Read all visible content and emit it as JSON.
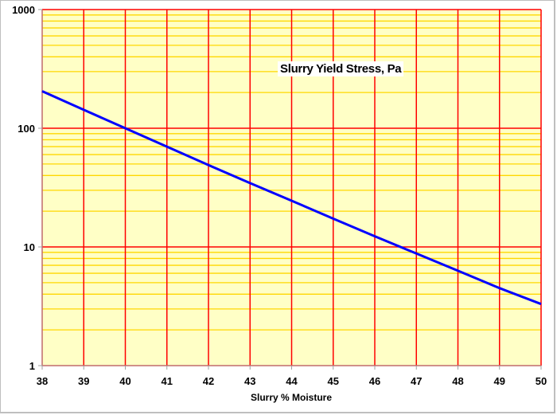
{
  "chart_data": {
    "type": "line",
    "title": "Slurry  Yield Stress, Pa",
    "xlabel": "Slurry % Moisture",
    "ylabel": "",
    "xlim": [
      38,
      50
    ],
    "ylim": [
      1,
      1000
    ],
    "yscale": "log",
    "x_ticks": [
      38,
      39,
      40,
      41,
      42,
      43,
      44,
      45,
      46,
      47,
      48,
      49,
      50
    ],
    "y_ticks": [
      1,
      10,
      100,
      1000
    ],
    "grid": true,
    "legend": "none",
    "series": [
      {
        "name": "Slurry Yield Stress, Pa",
        "x": [
          38,
          39,
          40,
          41,
          42,
          43,
          44,
          45,
          46,
          47,
          48,
          49,
          50
        ],
        "values": [
          205,
          143,
          100,
          70,
          49,
          34.5,
          24.5,
          17.3,
          12.3,
          8.8,
          6.3,
          4.5,
          3.3
        ],
        "color": "#0000ff"
      }
    ],
    "colors": {
      "plot_background": "#ffffc6",
      "major_grid": "#ff0000",
      "minor_grid": "#ffd700",
      "line": "#0000ff"
    }
  }
}
